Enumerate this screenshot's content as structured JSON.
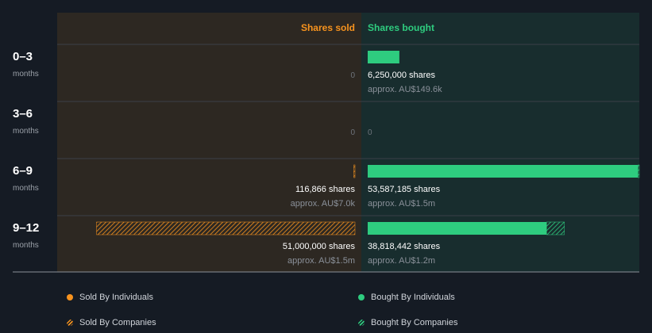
{
  "colors": {
    "background": "#151b24",
    "sold_panel": "#2d2822",
    "bought_panel": "#182d2e",
    "sold_accent": "#f7931e",
    "bought_accent": "#2ecc7f",
    "divider": "#3a4048",
    "muted": "#8a9099"
  },
  "chart_data": {
    "type": "bar",
    "title": "",
    "column_headers": {
      "sold": "Shares sold",
      "bought": "Shares bought"
    },
    "unit_label": "months",
    "bar_scale_max": 53587185,
    "categories": [
      "0–3",
      "3–6",
      "6–9",
      "9–12"
    ],
    "rows": [
      {
        "period": "0–3",
        "unit": "months",
        "sold": {
          "individuals": 0,
          "companies": 0,
          "label": "0",
          "approx": ""
        },
        "bought": {
          "individuals": 6250000,
          "companies": 0,
          "label": "6,250,000 shares",
          "approx": "approx. AU$149.6k"
        }
      },
      {
        "period": "3–6",
        "unit": "months",
        "sold": {
          "individuals": 0,
          "companies": 0,
          "label": "0",
          "approx": ""
        },
        "bought": {
          "individuals": 0,
          "companies": 0,
          "label": "0",
          "approx": ""
        }
      },
      {
        "period": "6–9",
        "unit": "months",
        "sold": {
          "individuals": 0,
          "companies": 116866,
          "label": "116,866 shares",
          "approx": "approx. AU$7.0k"
        },
        "bought": {
          "individuals": 53338000,
          "companies": 249185,
          "label": "53,587,185 shares",
          "approx": "approx. AU$1.5m"
        }
      },
      {
        "period": "9–12",
        "unit": "months",
        "sold": {
          "individuals": 0,
          "companies": 51000000,
          "label": "51,000,000 shares",
          "approx": "approx. AU$1.5m"
        },
        "bought": {
          "individuals": 35300000,
          "companies": 3518442,
          "label": "38,818,442 shares",
          "approx": "approx. AU$1.2m"
        }
      }
    ],
    "legend": [
      {
        "key": "sold_individuals",
        "label": "Sold By Individuals",
        "style": "solid",
        "side": "sold"
      },
      {
        "key": "bought_individuals",
        "label": "Bought By Individuals",
        "style": "solid",
        "side": "bought"
      },
      {
        "key": "sold_companies",
        "label": "Sold By Companies",
        "style": "hatched",
        "side": "sold"
      },
      {
        "key": "bought_companies",
        "label": "Bought By Companies",
        "style": "hatched",
        "side": "bought"
      }
    ]
  }
}
